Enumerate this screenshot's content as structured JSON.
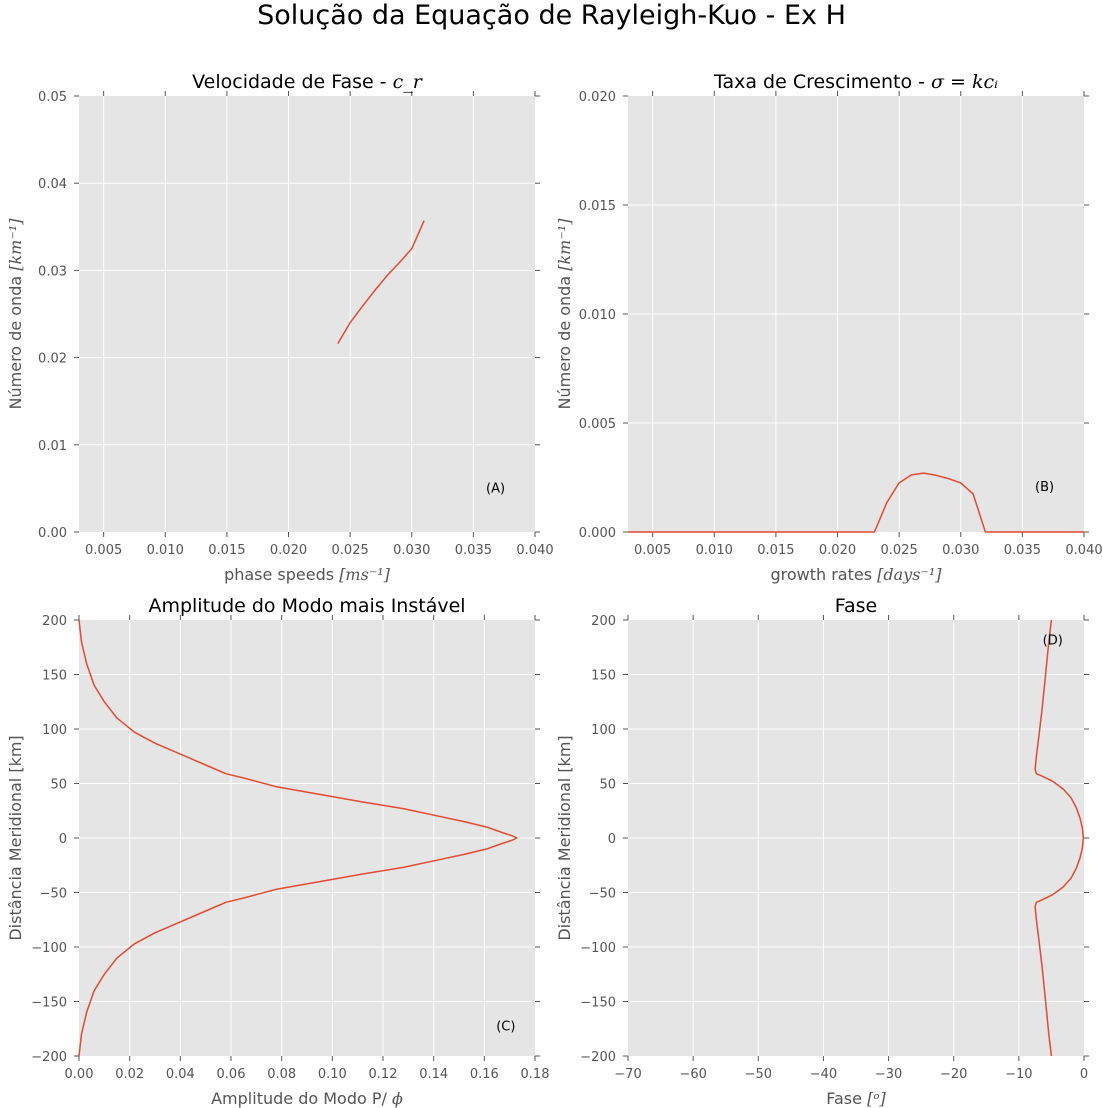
{
  "figure": {
    "suptitle": "Solução da Equação de Rayleigh-Kuo - Ex H"
  },
  "chart_data": [
    {
      "id": "A",
      "type": "line",
      "title": "Velocidade de Fase - ",
      "title_math": "c_r",
      "xlabel": "phase speeds ",
      "xlabel_math": "[ms⁻¹]",
      "ylabel": "Número de onda ",
      "ylabel_math": "[km⁻¹]",
      "annotation": "(A)",
      "annotation_at": [
        0.0368,
        0.0051
      ],
      "xlim": [
        0.003,
        0.04
      ],
      "ylim": [
        0.0,
        0.05
      ],
      "xticks": [
        "0.005",
        "0.010",
        "0.015",
        "0.020",
        "0.025",
        "0.030",
        "0.035",
        "0.040"
      ],
      "xtick_values": [
        0.005,
        0.01,
        0.015,
        0.02,
        0.025,
        0.03,
        0.035,
        0.04
      ],
      "yticks": [
        "0.00",
        "0.01",
        "0.02",
        "0.03",
        "0.04",
        "0.05"
      ],
      "ytick_values": [
        0.0,
        0.01,
        0.02,
        0.03,
        0.04,
        0.05
      ],
      "grid": true,
      "color": "#e24a33",
      "series": [
        {
          "x": [
            0.024,
            0.025,
            0.026,
            0.027,
            0.028,
            0.029,
            0.03,
            0.031
          ],
          "y": [
            0.0216,
            0.024,
            0.0259,
            0.0277,
            0.0294,
            0.0309,
            0.0325,
            0.0357
          ]
        }
      ]
    },
    {
      "id": "B",
      "type": "line",
      "title": "Taxa de Crescimento - ",
      "title_math": "σ = kcᵢ",
      "xlabel": "growth rates ",
      "xlabel_math": "[days⁻¹]",
      "ylabel": "Número de onda ",
      "ylabel_math": "[km⁻¹]",
      "annotation": "(B)",
      "annotation_at": [
        0.0368,
        0.0021
      ],
      "xlim": [
        0.003,
        0.04
      ],
      "ylim": [
        0.0,
        0.02
      ],
      "xticks": [
        "0.005",
        "0.010",
        "0.015",
        "0.020",
        "0.025",
        "0.030",
        "0.035",
        "0.040"
      ],
      "xtick_values": [
        0.005,
        0.01,
        0.015,
        0.02,
        0.025,
        0.03,
        0.035,
        0.04
      ],
      "yticks": [
        "0.000",
        "0.005",
        "0.010",
        "0.015",
        "0.020"
      ],
      "ytick_values": [
        0.0,
        0.005,
        0.01,
        0.015,
        0.02
      ],
      "grid": true,
      "color": "#e24a33",
      "series": [
        {
          "x": [
            0.003,
            0.004,
            0.005,
            0.006,
            0.007,
            0.008,
            0.009,
            0.01,
            0.011,
            0.012,
            0.013,
            0.014,
            0.015,
            0.016,
            0.017,
            0.018,
            0.019,
            0.02,
            0.021,
            0.022,
            0.023,
            0.024,
            0.025,
            0.026,
            0.027,
            0.028,
            0.029,
            0.03,
            0.031,
            0.032,
            0.033,
            0.034,
            0.035,
            0.036,
            0.037,
            0.038,
            0.039,
            0.04
          ],
          "y": [
            0,
            0,
            0,
            0,
            0,
            0,
            0,
            0,
            0,
            0,
            0,
            0,
            0,
            0,
            0,
            0,
            0,
            0,
            0,
            0,
            0,
            0.00135,
            0.00225,
            0.00262,
            0.0027,
            0.0026,
            0.00245,
            0.00225,
            0.00175,
            0,
            0,
            0,
            0,
            0,
            0,
            0,
            0,
            0
          ]
        }
      ]
    },
    {
      "id": "C",
      "type": "line",
      "title": "Amplitude do Modo mais Instável",
      "xlabel": "Amplitude do Modo P/ ",
      "xlabel_math": "ϕ",
      "ylabel": "Distância Meridional [km]",
      "annotation": "(C)",
      "annotation_at": [
        0.1685,
        -172
      ],
      "xlim": [
        0.0,
        0.18
      ],
      "ylim": [
        -200,
        200
      ],
      "xticks": [
        "0.00",
        "0.02",
        "0.04",
        "0.06",
        "0.08",
        "0.10",
        "0.12",
        "0.14",
        "0.16",
        "0.18"
      ],
      "xtick_values": [
        0.0,
        0.02,
        0.04,
        0.06,
        0.08,
        0.1,
        0.12,
        0.14,
        0.16,
        0.18
      ],
      "yticks": [
        "−200",
        "−150",
        "−100",
        "−50",
        "0",
        "50",
        "100",
        "150",
        "200"
      ],
      "ytick_values": [
        -200,
        -150,
        -100,
        -50,
        0,
        50,
        100,
        150,
        200
      ],
      "grid": true,
      "color": "#e24a33",
      "series": [
        {
          "x": [
            0.0,
            0.001,
            0.003,
            0.006,
            0.01,
            0.015,
            0.022,
            0.03,
            0.04,
            0.05,
            0.058,
            0.065,
            0.078,
            0.095,
            0.112,
            0.128,
            0.142,
            0.152,
            0.161,
            0.167,
            0.171,
            0.1728,
            0.171,
            0.167,
            0.161,
            0.152,
            0.142,
            0.128,
            0.112,
            0.095,
            0.078,
            0.065,
            0.058,
            0.05,
            0.04,
            0.03,
            0.022,
            0.015,
            0.01,
            0.006,
            0.003,
            0.001,
            0.0
          ],
          "y": [
            200,
            180,
            160,
            140,
            125,
            110,
            97,
            87,
            77,
            67,
            59,
            55,
            47,
            40,
            33,
            27,
            20,
            15,
            10,
            5,
            2,
            0,
            -2,
            -5,
            -10,
            -15,
            -20,
            -27,
            -33,
            -40,
            -47,
            -55,
            -59,
            -67,
            -77,
            -87,
            -97,
            -110,
            -125,
            -140,
            -160,
            -180,
            -200
          ]
        }
      ]
    },
    {
      "id": "D",
      "type": "line",
      "title": "Fase",
      "xlabel": "Fase ",
      "xlabel_math": "[ᵒ]",
      "ylabel": "Distância Meridional [km]",
      "annotation": "(D)",
      "annotation_at": [
        -4.8,
        182
      ],
      "xlim": [
        -70,
        0
      ],
      "ylim": [
        -200,
        200
      ],
      "xticks": [
        "−70",
        "−60",
        "−50",
        "−40",
        "−30",
        "−20",
        "−10",
        "0"
      ],
      "xtick_values": [
        -70,
        -60,
        -50,
        -40,
        -30,
        -20,
        -10,
        0
      ],
      "yticks": [
        "−200",
        "−150",
        "−100",
        "−50",
        "0",
        "50",
        "100",
        "150",
        "200"
      ],
      "ytick_values": [
        -200,
        -150,
        -100,
        -50,
        0,
        50,
        100,
        150,
        200
      ],
      "grid": true,
      "color": "#e24a33",
      "series": [
        {
          "x": [
            -5.0,
            -5.4,
            -5.9,
            -6.4,
            -6.9,
            -7.3,
            -7.5,
            -7.3,
            -6.5,
            -4.8,
            -3.2,
            -2.0,
            -1.2,
            -0.6,
            -0.25,
            -0.1,
            -0.25,
            -0.6,
            -1.2,
            -2.0,
            -3.2,
            -4.8,
            -6.5,
            -7.3,
            -7.5,
            -7.3,
            -6.9,
            -6.4,
            -5.9,
            -5.4,
            -5.0
          ],
          "y": [
            200,
            180,
            150,
            120,
            95,
            75,
            63,
            59,
            57,
            52,
            45,
            37,
            28,
            18,
            9,
            0,
            -9,
            -18,
            -28,
            -37,
            -45,
            -52,
            -57,
            -59,
            -63,
            -75,
            -95,
            -120,
            -150,
            -180,
            -200
          ]
        }
      ]
    }
  ]
}
